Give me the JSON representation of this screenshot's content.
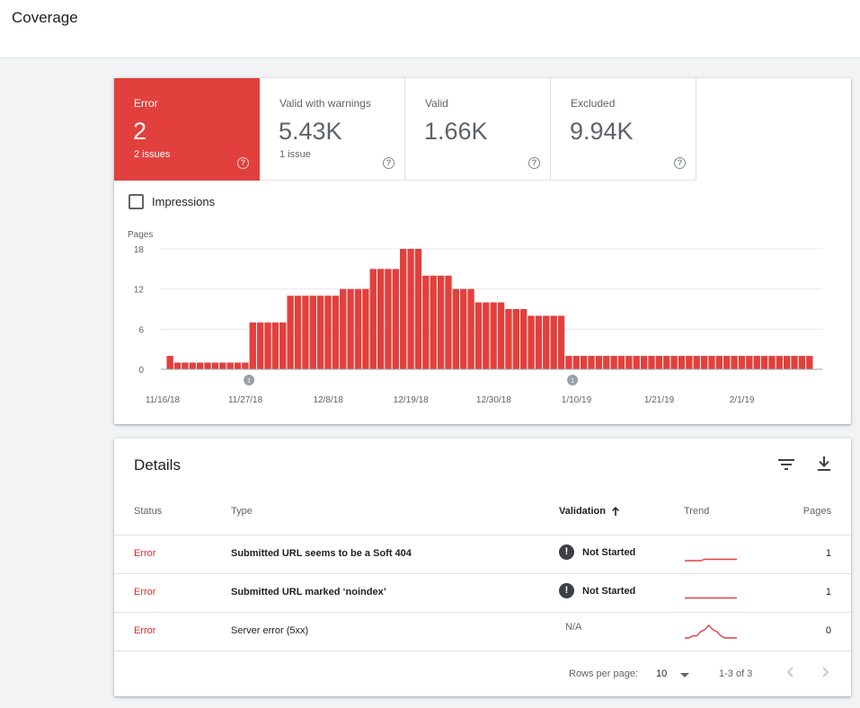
{
  "page": {
    "title": "Coverage"
  },
  "tiles": [
    {
      "label": "Error",
      "value": "2",
      "sub": "2 issues",
      "active": true
    },
    {
      "label": "Valid with warnings",
      "value": "5.43K",
      "sub": "1 issue"
    },
    {
      "label": "Valid",
      "value": "1.66K",
      "sub": ""
    },
    {
      "label": "Excluded",
      "value": "9.94K",
      "sub": ""
    }
  ],
  "help_glyph": "?",
  "impressions": {
    "label": "Impressions",
    "checked": false
  },
  "chart_data": {
    "type": "bar",
    "ylabel": "Pages",
    "ylim": [
      0,
      18
    ],
    "yticks": [
      "18",
      "12",
      "6",
      "0"
    ],
    "yticks_values": [
      18,
      12,
      6,
      0
    ],
    "xtick_labels": [
      "11/16/18",
      "11/27/18",
      "12/8/18",
      "12/19/18",
      "12/30/18",
      "1/10/19",
      "1/21/19",
      "2/1/19"
    ],
    "xtick_day_index": [
      0,
      11,
      22,
      33,
      44,
      55,
      66,
      77
    ],
    "start_date": "11/16/18",
    "annotation_marker_text": "1",
    "annotation_day_index": [
      11,
      54
    ],
    "color": "#e2403d",
    "values": [
      2,
      1,
      1,
      1,
      1,
      1,
      1,
      1,
      1,
      1,
      1,
      7,
      7,
      7,
      7,
      7,
      11,
      11,
      11,
      11,
      11,
      11,
      11,
      12,
      12,
      12,
      12,
      15,
      15,
      15,
      15,
      18,
      18,
      18,
      14,
      14,
      14,
      14,
      12,
      12,
      12,
      10,
      10,
      10,
      10,
      9,
      9,
      9,
      8,
      8,
      8,
      8,
      8,
      2,
      2,
      2,
      2,
      2,
      2,
      2,
      2,
      2,
      2,
      2,
      2,
      2,
      2,
      2,
      2,
      2,
      2,
      2,
      2,
      2,
      2,
      2,
      2,
      2,
      2,
      2,
      2,
      2,
      2,
      2,
      2,
      2
    ]
  },
  "details": {
    "title": "Details",
    "filter_icon": "filter-icon",
    "download_icon": "download-icon",
    "columns": {
      "status": "Status",
      "type": "Type",
      "validation": "Validation",
      "trend": "Trend",
      "pages": "Pages"
    },
    "rows": [
      {
        "status": "Error",
        "type": "Submitted URL seems to be a Soft 404",
        "validation": "Not Started",
        "pages": "1",
        "trend": [
          0,
          0,
          0,
          0,
          0,
          1,
          1,
          1,
          1,
          1,
          1,
          1,
          1,
          1
        ]
      },
      {
        "status": "Error",
        "type": "Submitted URL marked ‘noindex’",
        "validation": "Not Started",
        "pages": "1",
        "trend": [
          1,
          1,
          1,
          1,
          1,
          1,
          1,
          1,
          1,
          1,
          1,
          1,
          1,
          1
        ]
      },
      {
        "status": "Error",
        "type": "Server error (5xx)",
        "validation": "N/A",
        "pages": "0",
        "trend": [
          0,
          0,
          1,
          1,
          3,
          4,
          6,
          4,
          3,
          1,
          0,
          0,
          0,
          0
        ]
      }
    ],
    "alert_glyph": "!",
    "footer": {
      "rows_per_page_label": "Rows per page:",
      "rows_per_page": "10",
      "range": "1-3 of 3"
    }
  }
}
